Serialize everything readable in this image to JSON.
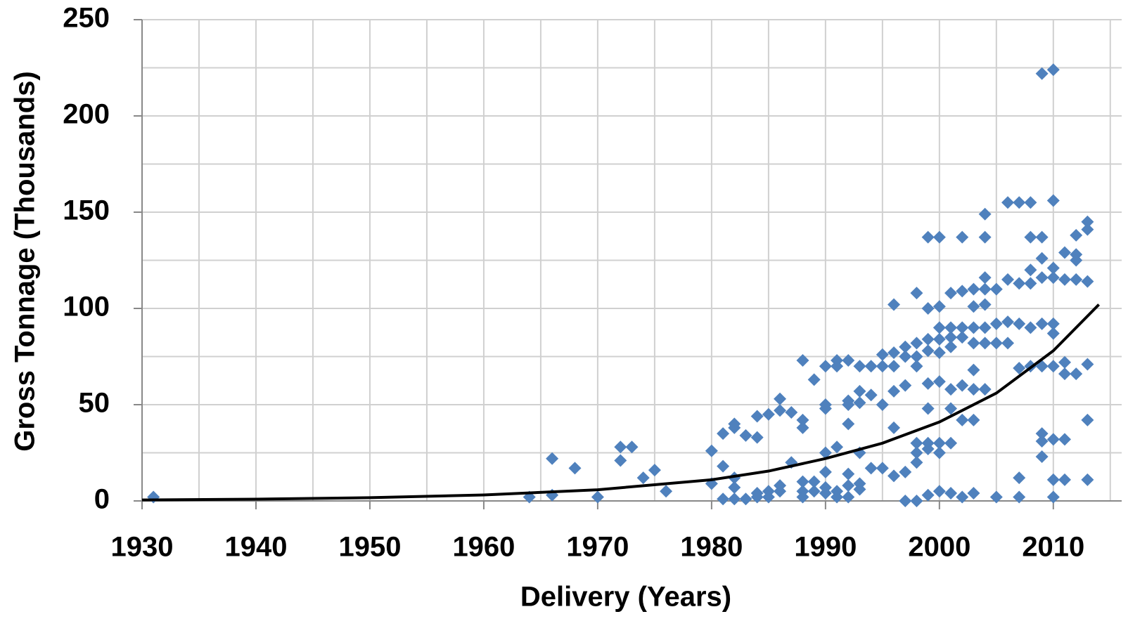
{
  "chart_data": {
    "type": "scatter",
    "xlabel": "Delivery (Years)",
    "ylabel": "Gross Tonnage (Thousands)",
    "xlim": [
      1930,
      2016
    ],
    "ylim": [
      0,
      250
    ],
    "xticks": [
      1930,
      1940,
      1950,
      1960,
      1970,
      1980,
      1990,
      2000,
      2010
    ],
    "yticks": [
      0,
      50,
      100,
      150,
      200,
      250
    ],
    "grid": true,
    "series": [
      {
        "color": "#4f81bd",
        "x": [
          1931,
          1964,
          1966,
          1966,
          1968,
          1970,
          1972,
          1972,
          1973,
          1974,
          1975,
          1976,
          1980,
          1980,
          1981,
          1981,
          1981,
          1982,
          1982,
          1982,
          1982,
          1982,
          1983,
          1983,
          1984,
          1984,
          1984,
          1984,
          1985,
          1985,
          1985,
          1986,
          1986,
          1986,
          1986,
          1987,
          1987,
          1988,
          1988,
          1988,
          1988,
          1988,
          1988,
          1989,
          1989,
          1989,
          1990,
          1990,
          1990,
          1990,
          1990,
          1990,
          1990,
          1991,
          1991,
          1991,
          1991,
          1991,
          1992,
          1992,
          1992,
          1992,
          1992,
          1992,
          1992,
          1993,
          1993,
          1993,
          1993,
          1993,
          1993,
          1994,
          1994,
          1994,
          1995,
          1995,
          1995,
          1995,
          1996,
          1996,
          1996,
          1996,
          1996,
          1996,
          1997,
          1997,
          1997,
          1997,
          1997,
          1998,
          1998,
          1998,
          1998,
          1998,
          1998,
          1998,
          1998,
          1999,
          1999,
          1999,
          1999,
          1999,
          1999,
          1999,
          1999,
          1999,
          2000,
          2000,
          2000,
          2000,
          2000,
          2000,
          2000,
          2000,
          2000,
          2001,
          2001,
          2001,
          2001,
          2001,
          2001,
          2001,
          2001,
          2002,
          2002,
          2002,
          2002,
          2002,
          2002,
          2002,
          2003,
          2003,
          2003,
          2003,
          2003,
          2003,
          2003,
          2003,
          2004,
          2004,
          2004,
          2004,
          2004,
          2004,
          2004,
          2004,
          2005,
          2005,
          2005,
          2005,
          2006,
          2006,
          2006,
          2006,
          2007,
          2007,
          2007,
          2007,
          2007,
          2007,
          2008,
          2008,
          2008,
          2008,
          2008,
          2008,
          2009,
          2009,
          2009,
          2009,
          2009,
          2009,
          2009,
          2009,
          2009,
          2010,
          2010,
          2010,
          2010,
          2010,
          2010,
          2010,
          2010,
          2010,
          2010,
          2011,
          2011,
          2011,
          2011,
          2011,
          2011,
          2012,
          2012,
          2012,
          2012,
          2012,
          2013,
          2013,
          2013,
          2013,
          2013,
          2013
        ],
        "values": [
          2,
          2,
          22,
          3,
          17,
          2,
          28,
          21,
          28,
          12,
          16,
          5,
          26,
          9,
          18,
          35,
          1,
          38,
          40,
          7,
          1,
          12,
          34,
          1,
          44,
          33,
          4,
          2,
          45,
          5,
          2,
          53,
          47,
          8,
          5,
          46,
          20,
          73,
          42,
          38,
          10,
          5,
          2,
          63,
          10,
          5,
          70,
          48,
          50,
          25,
          15,
          7,
          4,
          73,
          70,
          28,
          5,
          2,
          73,
          52,
          50,
          40,
          14,
          8,
          2,
          70,
          57,
          51,
          25,
          9,
          6,
          70,
          55,
          17,
          76,
          70,
          50,
          17,
          102,
          77,
          70,
          57,
          38,
          13,
          80,
          75,
          60,
          15,
          0,
          108,
          82,
          75,
          70,
          30,
          25,
          20,
          0,
          137,
          100,
          84,
          78,
          61,
          48,
          30,
          27,
          3,
          137,
          101,
          90,
          84,
          77,
          62,
          30,
          25,
          5,
          108,
          90,
          85,
          80,
          58,
          48,
          30,
          4,
          137,
          109,
          90,
          85,
          60,
          42,
          2,
          110,
          101,
          90,
          82,
          68,
          58,
          42,
          4,
          149,
          137,
          116,
          110,
          102,
          90,
          82,
          58,
          110,
          92,
          82,
          2,
          155,
          115,
          93,
          82,
          155,
          113,
          92,
          69,
          12,
          2,
          155,
          137,
          120,
          113,
          90,
          70,
          222,
          137,
          126,
          116,
          92,
          70,
          35,
          31,
          23,
          224,
          156,
          121,
          116,
          92,
          87,
          70,
          32,
          11,
          2,
          129,
          115,
          72,
          66,
          32,
          11,
          138,
          128,
          125,
          115,
          66,
          145,
          141,
          114,
          71,
          42,
          11
        ]
      },
      {
        "type": "line",
        "color": "#000000",
        "x": [
          1930,
          1940,
          1950,
          1960,
          1970,
          1980,
          1985,
          1990,
          1995,
          2000,
          2005,
          2010,
          2014
        ],
        "values": [
          0.5,
          0.9,
          1.7,
          3.1,
          5.8,
          11,
          15.5,
          22,
          30,
          41,
          56,
          78,
          102
        ]
      }
    ]
  }
}
